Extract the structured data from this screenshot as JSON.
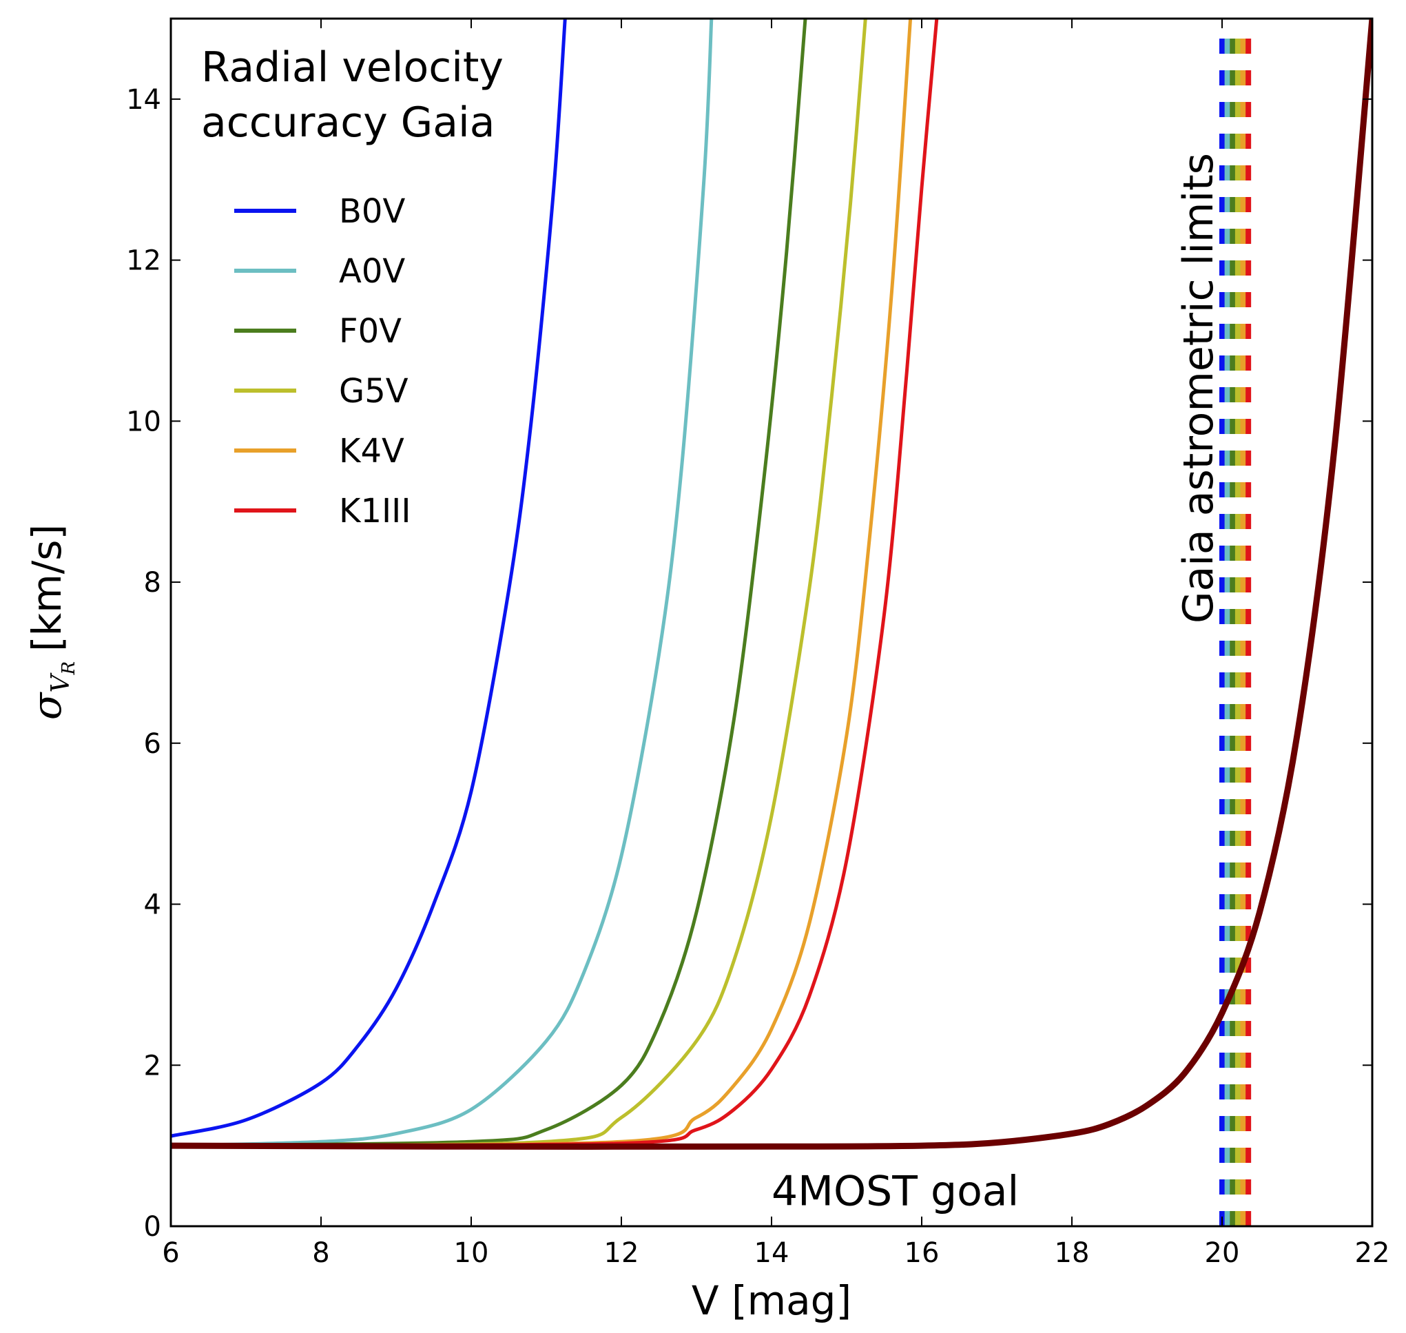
{
  "chart_data": {
    "type": "line",
    "xlabel": "V [mag]",
    "ylabel": {
      "symbol": "σ",
      "sub": "V",
      "subsub": "R",
      "units": "[km/s]"
    },
    "xlim": [
      6,
      22
    ],
    "ylim": [
      0,
      15
    ],
    "xticks": [
      "6",
      "8",
      "10",
      "12",
      "14",
      "16",
      "18",
      "20",
      "22"
    ],
    "yticks": [
      "0",
      "2",
      "4",
      "6",
      "8",
      "10",
      "12",
      "14"
    ],
    "legend": {
      "title_lines": [
        "Radial velocity",
        "accuracy Gaia"
      ],
      "placement": "upper-left"
    },
    "series": [
      {
        "name": "B0V",
        "color": "#0a14f0",
        "x": [
          6,
          7,
          8,
          8.5,
          9,
          9.5,
          10,
          10.5,
          10.8,
          11.1,
          11.25
        ],
        "y": [
          1.12,
          1.32,
          1.78,
          2.25,
          2.95,
          4.0,
          5.4,
          7.9,
          10.0,
          12.9,
          15.0
        ]
      },
      {
        "name": "A0V",
        "color": "#6cbec2",
        "x": [
          6,
          8,
          9,
          10,
          11,
          11.5,
          12,
          12.5,
          12.8,
          13.1,
          13.2
        ],
        "y": [
          1.0,
          1.05,
          1.15,
          1.45,
          2.3,
          3.15,
          4.6,
          7.1,
          9.4,
          13.0,
          15.0
        ]
      },
      {
        "name": "F0V",
        "color": "#4b7d1e",
        "x": [
          6,
          10,
          11,
          12,
          12.5,
          13,
          13.5,
          13.9,
          14.2,
          14.45
        ],
        "y": [
          1.0,
          1.05,
          1.2,
          1.75,
          2.5,
          3.9,
          6.3,
          9.3,
          12.1,
          15.0
        ]
      },
      {
        "name": "G5V",
        "color": "#bcbf2c",
        "x": [
          6,
          11,
          12,
          13,
          13.5,
          14,
          14.5,
          14.8,
          15.05,
          15.25
        ],
        "y": [
          1.0,
          1.05,
          1.35,
          2.3,
          3.3,
          5.1,
          7.9,
          10.3,
          12.7,
          15.0
        ]
      },
      {
        "name": "K4V",
        "color": "#e8a02a",
        "x": [
          6,
          12,
          13,
          13.5,
          14,
          14.5,
          15,
          15.3,
          15.6,
          15.85
        ],
        "y": [
          1.0,
          1.05,
          1.35,
          1.75,
          2.45,
          3.75,
          6.1,
          8.5,
          11.6,
          15.0
        ]
      },
      {
        "name": "K1III",
        "color": "#e0141a",
        "x": [
          6,
          12,
          13,
          13.5,
          14,
          14.5,
          15,
          15.5,
          15.8,
          16.0,
          16.2
        ],
        "y": [
          1.0,
          1.03,
          1.2,
          1.45,
          1.95,
          2.85,
          4.55,
          7.6,
          10.6,
          12.9,
          15.0
        ]
      },
      {
        "name": "4MOST goal",
        "color": "#6b0000",
        "x": [
          6,
          10,
          14,
          16,
          17,
          18,
          18.5,
          19,
          19.5,
          20,
          20.5,
          21,
          21.5,
          22
        ],
        "y": [
          1.0,
          0.99,
          0.99,
          1.0,
          1.04,
          1.15,
          1.27,
          1.5,
          1.9,
          2.65,
          3.9,
          6.1,
          9.7,
          15.0
        ]
      }
    ],
    "gaia_limits": {
      "label": "Gaia astrometric limits",
      "colors": [
        "#0a14f0",
        "#6cbec2",
        "#4b7d1e",
        "#bcbf2c",
        "#e8a02a",
        "#e0141a"
      ],
      "x": [
        20.0,
        20.07,
        20.14,
        20.21,
        20.28,
        20.35
      ]
    },
    "annotations": [
      {
        "text": "4MOST goal",
        "x": 14.0,
        "y": 0.45
      }
    ],
    "grid": false
  }
}
